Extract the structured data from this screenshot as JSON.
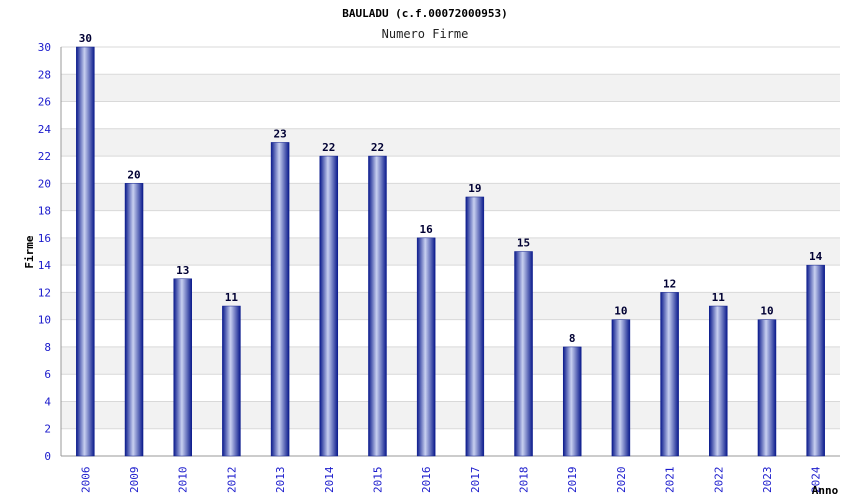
{
  "chart_data": {
    "type": "bar",
    "title": "BAULADU (c.f.00072000953)",
    "subtitle": "Numero Firme",
    "xlabel": "Anno",
    "ylabel": "Firme",
    "categories": [
      "2006",
      "2009",
      "2010",
      "2012",
      "2013",
      "2014",
      "2015",
      "2016",
      "2017",
      "2018",
      "2019",
      "2020",
      "2021",
      "2022",
      "2023",
      "2024"
    ],
    "values": [
      30,
      20,
      13,
      11,
      23,
      22,
      22,
      16,
      19,
      15,
      8,
      10,
      12,
      11,
      10,
      14
    ],
    "ylim": [
      0,
      30
    ],
    "yticks": [
      0,
      2,
      4,
      6,
      8,
      10,
      12,
      14,
      16,
      18,
      20,
      22,
      24,
      26,
      28,
      30
    ],
    "grid": "horizontal bands",
    "colors": {
      "bar_dark": "#0a1a8c",
      "bar_light": "#c8d0f0",
      "band": "#f2f2f2",
      "grid": "#d9d9d9"
    }
  }
}
